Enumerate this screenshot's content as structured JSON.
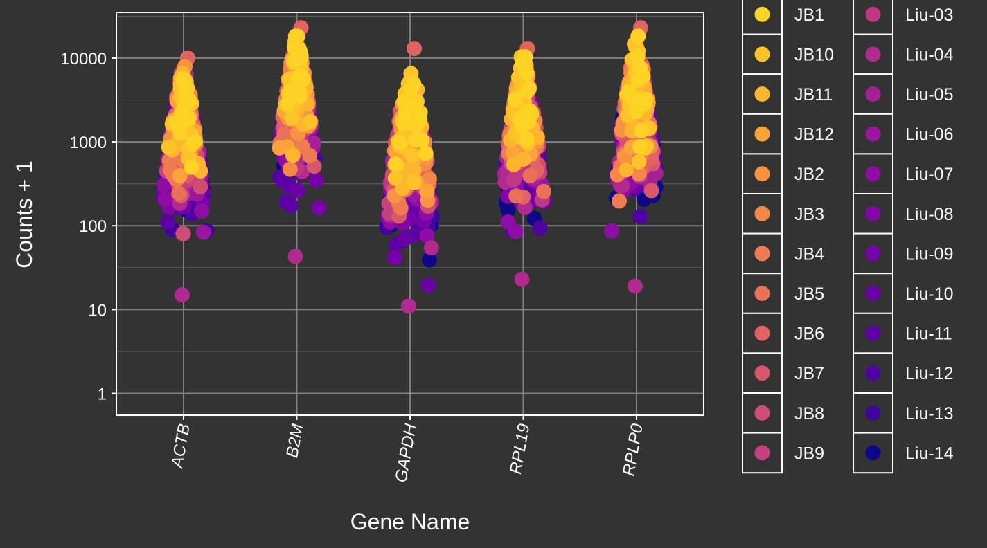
{
  "chart_data": {
    "type": "scatter",
    "subtype": "beeswarm",
    "title": "",
    "xlabel": "Gene Name",
    "ylabel": "Counts + 1",
    "y_scale": "log10",
    "ylim": [
      0.55,
      35000
    ],
    "y_ticks": [
      1,
      10,
      100,
      1000,
      10000
    ],
    "y_tick_labels": [
      "1",
      "10",
      "100",
      "1000",
      "10000"
    ],
    "categories": [
      "ACTB",
      "B2M",
      "GAPDH",
      "RPL19",
      "RPLP0"
    ],
    "grid": true,
    "legend_position": "right",
    "series": [
      {
        "name": "JB1",
        "color": "#fcd225"
      },
      {
        "name": "JB10",
        "color": "#fdc328"
      },
      {
        "name": "JB11",
        "color": "#fdb42f"
      },
      {
        "name": "JB12",
        "color": "#fba238"
      },
      {
        "name": "JB2",
        "color": "#f89441"
      },
      {
        "name": "JB3",
        "color": "#f48849"
      },
      {
        "name": "JB4",
        "color": "#ef7b51"
      },
      {
        "name": "JB5",
        "color": "#e97158"
      },
      {
        "name": "JB6",
        "color": "#e16462"
      },
      {
        "name": "JB7",
        "color": "#d8576b"
      },
      {
        "name": "JB8",
        "color": "#cf4c74"
      },
      {
        "name": "JB9",
        "color": "#c5407e"
      },
      {
        "name": "Liu-03",
        "color": "#be3885"
      },
      {
        "name": "Liu-04",
        "color": "#b12a90"
      },
      {
        "name": "Liu-05",
        "color": "#a62098"
      },
      {
        "name": "Liu-06",
        "color": "#9a169f"
      },
      {
        "name": "Liu-07",
        "color": "#8f0da4"
      },
      {
        "name": "Liu-08",
        "color": "#8305a7"
      },
      {
        "name": "Liu-09",
        "color": "#7601a8"
      },
      {
        "name": "Liu-10",
        "color": "#6a00a8"
      },
      {
        "name": "Liu-11",
        "color": "#5c01a6"
      },
      {
        "name": "Liu-12",
        "color": "#4e02a2"
      },
      {
        "name": "Liu-13",
        "color": "#3e049c"
      },
      {
        "name": "Liu-14",
        "color": "#0d0887"
      }
    ],
    "gene_ranges": {
      "ACTB": {
        "min": 15,
        "max": 10000,
        "center": 1000
      },
      "B2M": {
        "min": 43,
        "max": 23000,
        "center": 2500
      },
      "GAPDH": {
        "min": 11,
        "max": 13000,
        "center": 600
      },
      "RPL19": {
        "min": 23,
        "max": 13000,
        "center": 1200
      },
      "RPLP0": {
        "min": 19,
        "max": 23000,
        "center": 1600
      }
    }
  },
  "theme": {
    "background": "#333333",
    "panel_border": "#ffffff",
    "grid_major": "#808080",
    "grid_minor": "#5e5e5e",
    "text": "#ffffff"
  }
}
